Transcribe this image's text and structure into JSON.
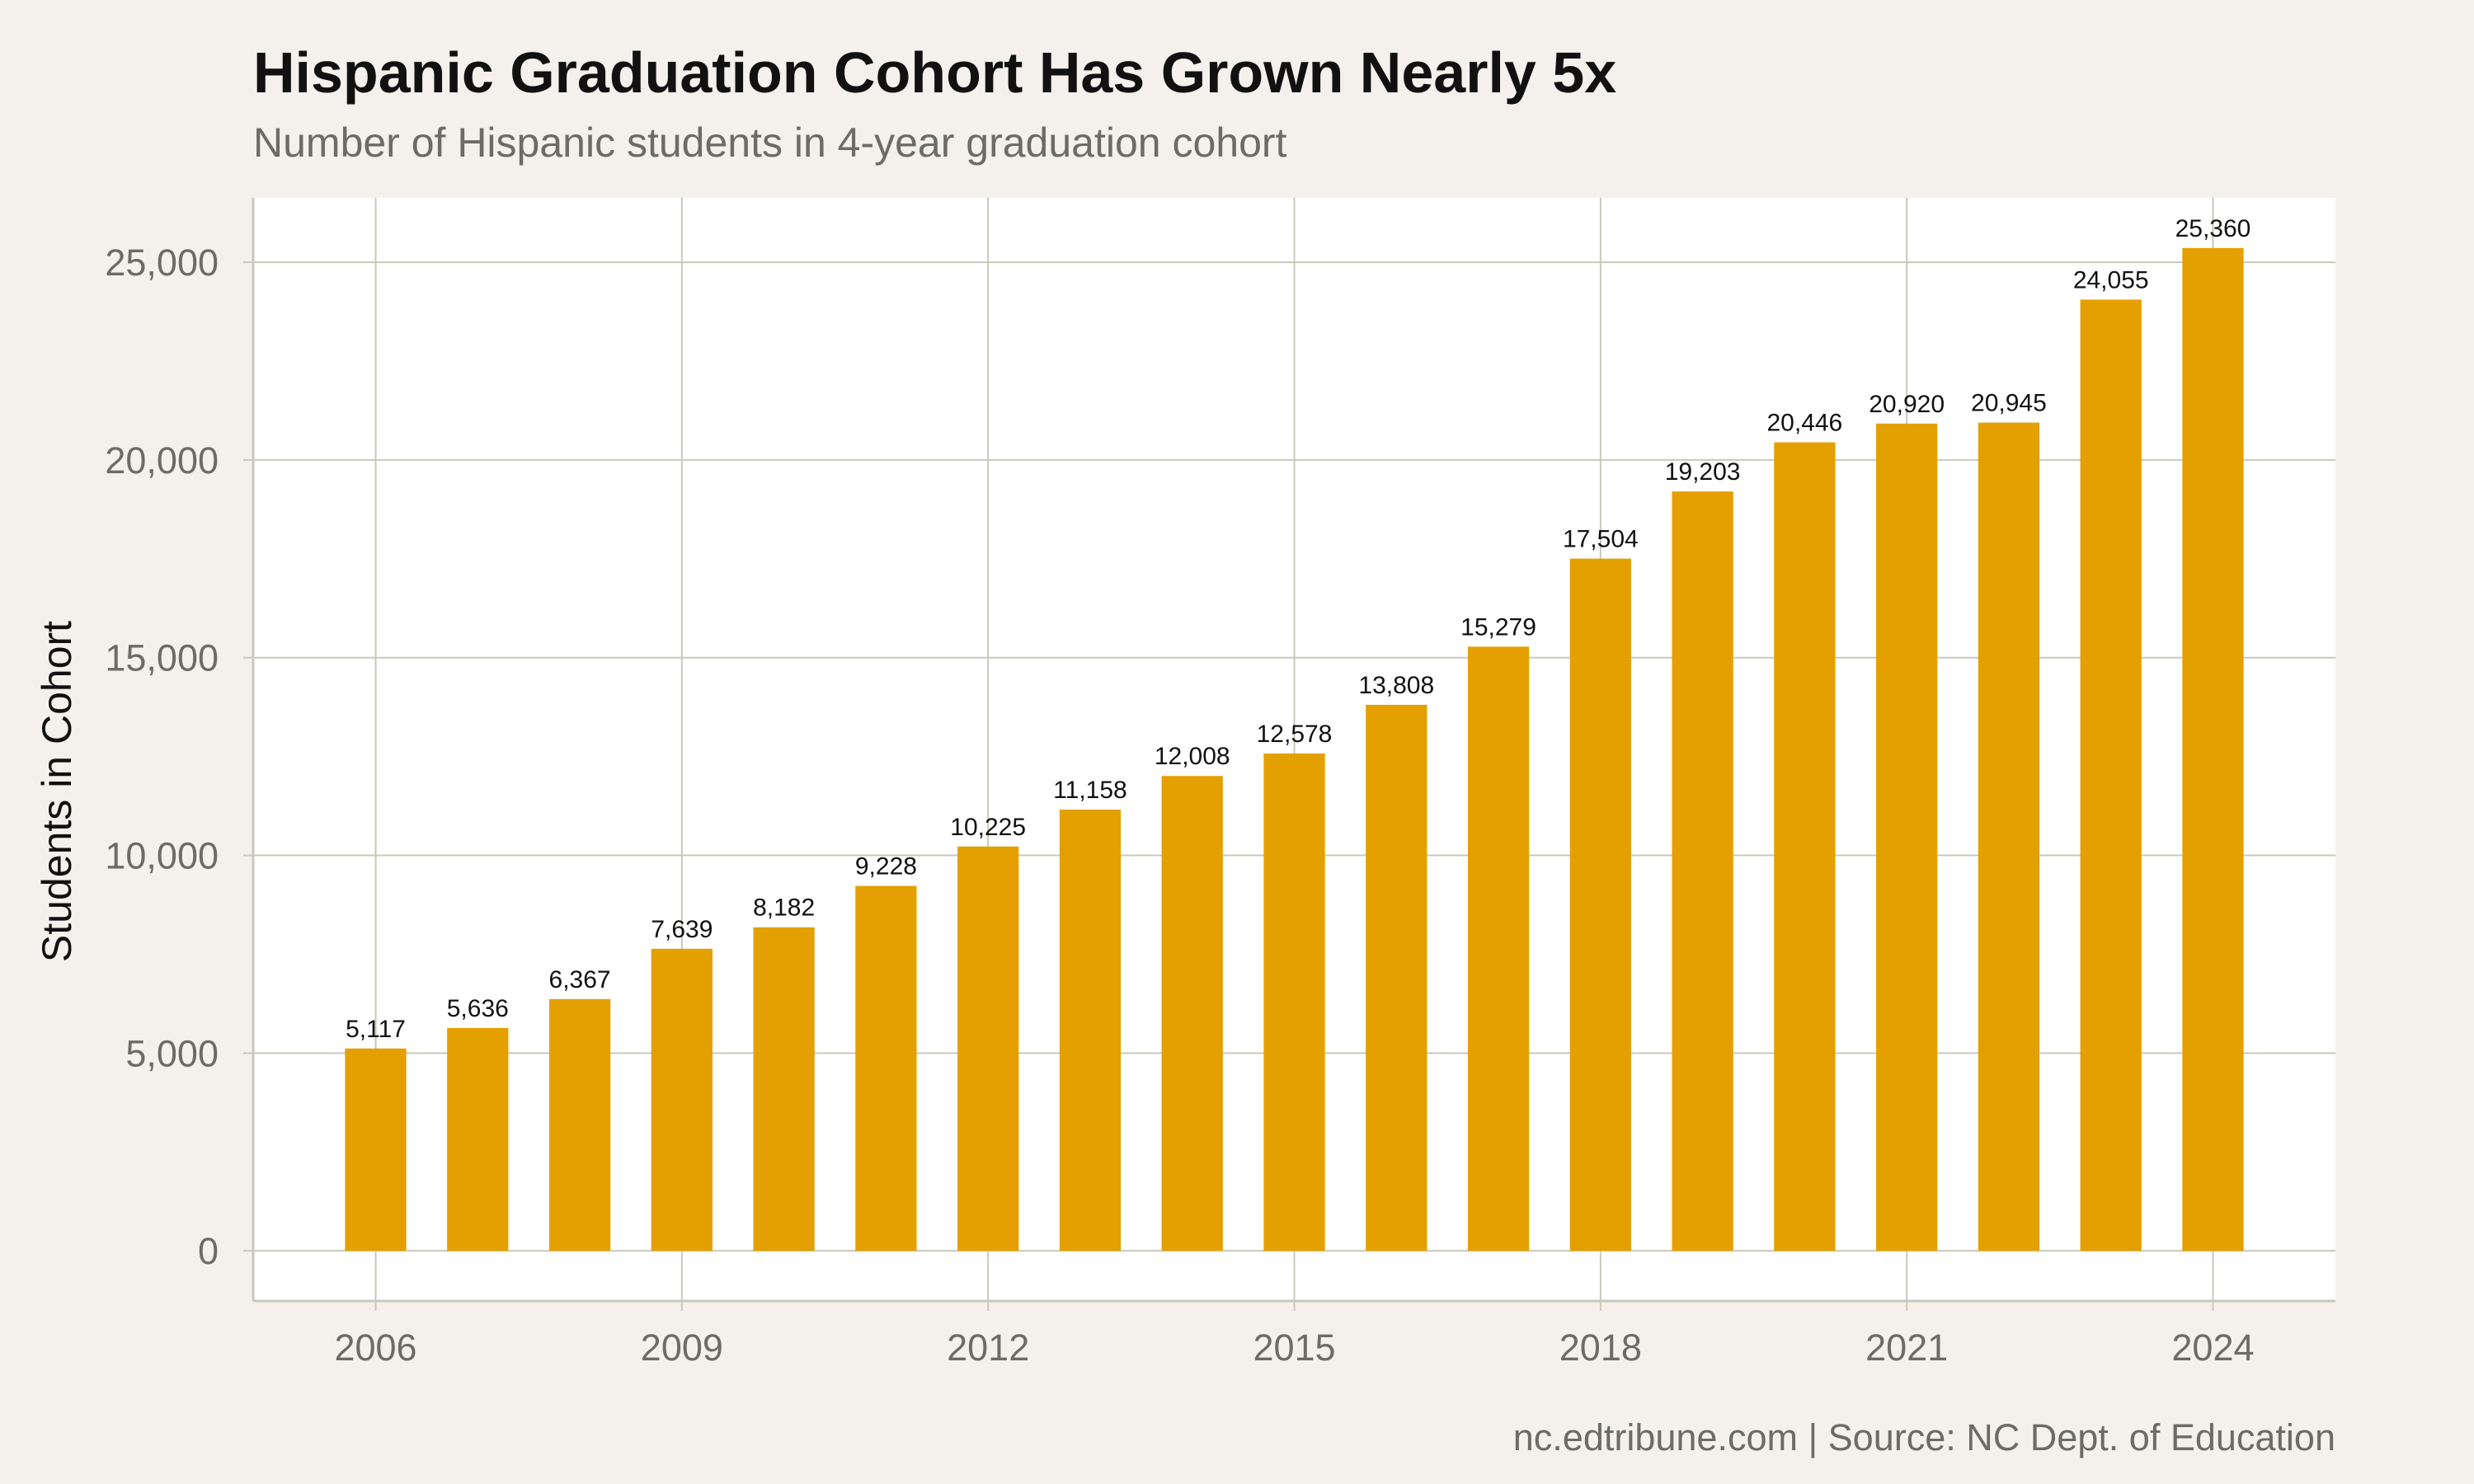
{
  "colors": {
    "background": "#f4f1ec",
    "panel": "#ffffff",
    "bar": "#e4a000",
    "grid": "#c9c8bd",
    "axis_line": "#c9c8bd",
    "title": "#111111",
    "muted_text": "#6e6a66",
    "label_text": "#111111"
  },
  "caption": "nc.edtribune.com | Source: NC Dept. of Education",
  "chart_data": {
    "type": "bar",
    "title": "Hispanic Graduation Cohort Has Grown Nearly 5x",
    "subtitle": "Number of Hispanic students in 4-year graduation cohort",
    "xlabel": "",
    "ylabel": "Students in Cohort",
    "x": [
      2006,
      2007,
      2008,
      2009,
      2010,
      2011,
      2012,
      2013,
      2014,
      2015,
      2016,
      2017,
      2018,
      2019,
      2020,
      2021,
      2022,
      2023,
      2024
    ],
    "values": [
      5117,
      5636,
      6367,
      7639,
      8182,
      9228,
      10225,
      11158,
      12008,
      12578,
      13808,
      15279,
      17504,
      19203,
      20446,
      20920,
      20945,
      24055,
      25360
    ],
    "data_labels": [
      "5,117",
      "5,636",
      "6,367",
      "7,639",
      "8,182",
      "9,228",
      "10,225",
      "11,158",
      "12,008",
      "12,578",
      "13,808",
      "15,279",
      "17,504",
      "19,203",
      "20,446",
      "20,920",
      "20,945",
      "24,055",
      "25,360"
    ],
    "xticks": [
      2006,
      2009,
      2012,
      2015,
      2018,
      2021,
      2024
    ],
    "xtick_labels": [
      "2006",
      "2009",
      "2012",
      "2015",
      "2018",
      "2021",
      "2024"
    ],
    "yticks": [
      0,
      5000,
      10000,
      15000,
      20000,
      25000
    ],
    "ytick_labels": [
      "0",
      "5,000",
      "10,000",
      "15,000",
      "20,000",
      "25,000"
    ],
    "xlim": [
      2004.8,
      2025.2
    ],
    "ylim": [
      -1268,
      26628
    ],
    "grid": true,
    "legend": "none"
  }
}
